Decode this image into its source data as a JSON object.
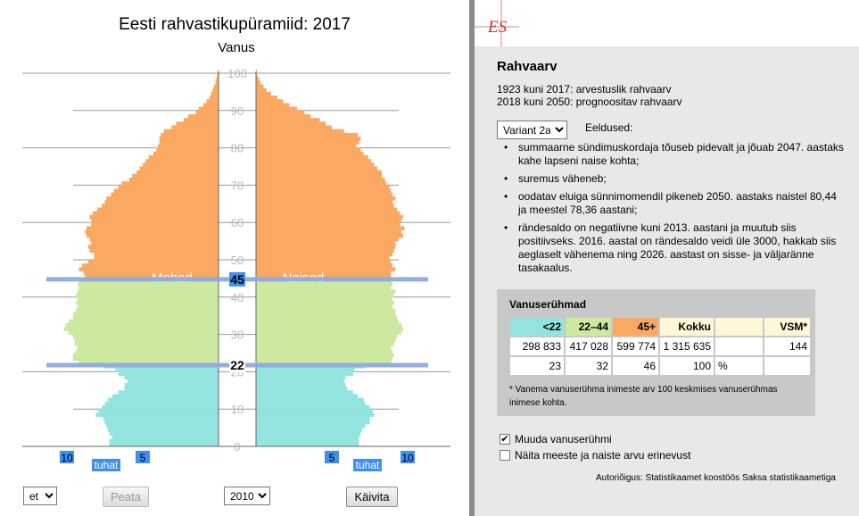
{
  "left": {
    "title": "Eesti rahvastikupüramiid: 2017",
    "axis_label": "Vanus",
    "age_ticks": [
      "0",
      "10",
      "20",
      "30",
      "40",
      "50",
      "60",
      "70",
      "80",
      "90",
      "100"
    ],
    "men_label": "Mehed",
    "women_label": "Naised",
    "upper_boundary": "45",
    "lower_boundary": "22",
    "x_ticks_left": [
      "10",
      "5"
    ],
    "x_ticks_right": [
      "5",
      "10"
    ],
    "unit_label": "tuhat",
    "language_select": "et",
    "stop_button": "Peata",
    "year_select": "2010",
    "run_button": "Käivita"
  },
  "right": {
    "logo": "ES",
    "title": "Rahvaarv",
    "line1": "1923 kuni 2017: arvestuslik rahvaarv",
    "line2": "2018 kuni 2050: prognoositav rahvaarv",
    "variant_select": "Variant 2a",
    "assumptions_label": "Eeldused:",
    "assumptions": [
      "summaarne sündimuskordaja tõuseb pidevalt ja jõuab 2047. aastaks kahe lapseni naise kohta;",
      "suremus väheneb;",
      "oodatav eluiga sünnimomendil pikeneb 2050. aastaks naistel 80,44 ja meestel 78,36 aastani;",
      "rändesaldo on negatiivne kuni 2013. aastani ja muutub siis positiivseks. 2016. aastal on rändesaldo veidi üle 3000, hakkab siis aeglaselt vähenema ning 2026. aastast on sisse- ja väljaränne tasakaalus."
    ],
    "groups_title": "Vanuserühmad",
    "groups_header": [
      "<22",
      "22–44",
      "45+",
      "Kokku",
      "",
      "VSM*"
    ],
    "groups_counts": [
      "298 833",
      "417 028",
      "599 774",
      "1 315 635",
      "",
      "144"
    ],
    "groups_percent": [
      "23",
      "32",
      "46",
      "100",
      "%",
      ""
    ],
    "groups_footnote": "* Vanema vanuserühma inimeste arv 100 keskmises vanuserühmas inimese kohta.",
    "check1": "Muuda vanuserühmi",
    "check1_checked": true,
    "check2": "Näita meeste ja naiste arvu erinevust",
    "check2_checked": false,
    "copyright": "Autoriõigus: Statistikaamet koostöös Saksa statistikaametiga"
  },
  "colors": {
    "young": "#93e3df",
    "middle": "#cde89f",
    "old": "#fba862",
    "boundary": "#8eaadc",
    "label_bg": "#3f8ff2",
    "logo": "#c0392b"
  },
  "chart_data": {
    "type": "bar",
    "title": "Eesti rahvastikupüramiid: 2017",
    "ylabel": "Vanus",
    "xlabel": "tuhat",
    "ylim": [
      0,
      100
    ],
    "xlim": [
      0,
      10
    ],
    "age_groups": [
      {
        "ages": "0–21",
        "color": "#93e3df"
      },
      {
        "ages": "22–44",
        "color": "#cde89f"
      },
      {
        "ages": "45+",
        "color": "#fba862"
      }
    ],
    "series": [
      {
        "name": "Mehed",
        "values_by_age": [
          7.2,
          7.2,
          7.0,
          7.2,
          7.3,
          7.4,
          7.5,
          7.6,
          8.1,
          7.9,
          7.7,
          7.5,
          7.3,
          7.0,
          6.6,
          6.2,
          6.2,
          6.0,
          6.2,
          6.6,
          6.8,
          7.6,
          9.2,
          9.6,
          9.6,
          9.4,
          9.3,
          9.5,
          9.5,
          9.6,
          9.9,
          10.2,
          10.1,
          9.9,
          9.6,
          9.6,
          9.4,
          9.3,
          9.4,
          9.3,
          9.4,
          9.3,
          9.2,
          9.3,
          9.1,
          8.8,
          8.9,
          9.2,
          9.0,
          8.6,
          8.2,
          8.2,
          8.5,
          8.6,
          8.4,
          8.5,
          8.7,
          8.8,
          8.7,
          8.4,
          8.4,
          8.5,
          8.3,
          8.0,
          7.7,
          7.5,
          7.4,
          7.1,
          6.9,
          6.6,
          6.4,
          5.9,
          5.7,
          5.4,
          5.2,
          5.0,
          4.8,
          4.6,
          4.3,
          4.1,
          4.0,
          3.9,
          3.9,
          3.8,
          3.6,
          3.1,
          2.8,
          2.3,
          2.0,
          1.5,
          1.3,
          1.0,
          0.8,
          0.6,
          0.5,
          0.4,
          0.3,
          0.2,
          0.15,
          0.1,
          0.05
        ]
      },
      {
        "name": "Naised",
        "values_by_age": [
          6.8,
          6.8,
          6.8,
          6.9,
          7.0,
          7.2,
          7.5,
          7.5,
          7.8,
          7.7,
          7.5,
          7.2,
          7.1,
          6.7,
          6.4,
          6.0,
          5.9,
          5.8,
          5.9,
          6.4,
          6.5,
          7.2,
          8.9,
          9.0,
          9.1,
          9.0,
          8.9,
          9.1,
          9.2,
          9.3,
          9.6,
          9.7,
          9.6,
          9.4,
          9.3,
          9.2,
          9.2,
          9.0,
          9.1,
          9.0,
          9.1,
          9.2,
          8.9,
          9.0,
          8.9,
          8.9,
          8.9,
          9.2,
          9.0,
          8.9,
          8.8,
          9.0,
          9.1,
          9.2,
          9.2,
          9.4,
          9.7,
          9.6,
          9.8,
          9.5,
          9.6,
          9.7,
          9.5,
          9.3,
          9.1,
          9.0,
          9.2,
          9.0,
          8.9,
          8.8,
          8.6,
          8.5,
          8.3,
          8.3,
          8.0,
          7.8,
          7.6,
          7.4,
          7.1,
          6.9,
          6.6,
          6.8,
          6.9,
          6.7,
          5.8,
          5.0,
          4.6,
          4.2,
          3.6,
          3.2,
          2.7,
          2.2,
          1.8,
          1.4,
          1.0,
          0.7,
          0.5,
          0.3,
          0.2,
          0.1,
          0.05
        ]
      }
    ]
  }
}
